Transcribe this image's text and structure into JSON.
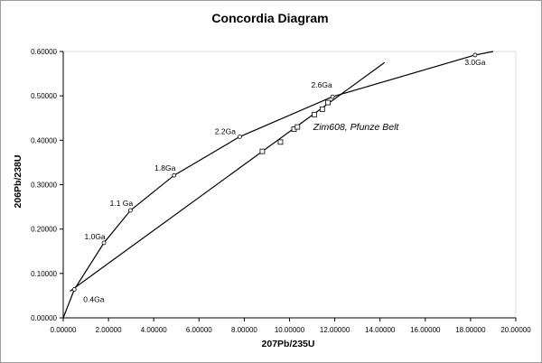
{
  "chart_data": {
    "type": "scatter",
    "title": "Concordia Diagram",
    "xlabel": "207Pb/235U",
    "ylabel": "206Pb/238U",
    "xlim": [
      0,
      20
    ],
    "ylim": [
      0,
      0.6
    ],
    "x_ticks": [
      "0.00000",
      "2.00000",
      "4.00000",
      "6.00000",
      "8.00000",
      "10.00000",
      "12.00000",
      "14.00000",
      "16.00000",
      "18.00000",
      "20.00000"
    ],
    "y_ticks": [
      "0.00000",
      "0.10000",
      "0.20000",
      "0.30000",
      "0.40000",
      "0.50000",
      "0.60000"
    ],
    "concordia_curve": {
      "x": [
        0,
        0.49,
        1.8,
        2.97,
        4.9,
        7.8,
        11.9,
        18.2,
        19.0
      ],
      "y": [
        0,
        0.064,
        0.169,
        0.242,
        0.321,
        0.408,
        0.498,
        0.592,
        0.6
      ]
    },
    "concordia_markers": [
      {
        "label": "0.4Ga",
        "x": 0.49,
        "y": 0.064
      },
      {
        "label": "1.0Ga",
        "x": 1.8,
        "y": 0.169
      },
      {
        "label": "1.1 Ga",
        "x": 2.97,
        "y": 0.242
      },
      {
        "label": "1.8Ga",
        "x": 4.9,
        "y": 0.321
      },
      {
        "label": "2.2Ga",
        "x": 7.8,
        "y": 0.408
      },
      {
        "label": "2.6Ga",
        "x": 11.9,
        "y": 0.498
      },
      {
        "label": "3.0Ga",
        "x": 18.2,
        "y": 0.592
      }
    ],
    "discordia_line": {
      "x": [
        0.3,
        14.2
      ],
      "y": [
        0.06,
        0.575
      ]
    },
    "samples": {
      "name": "Zim608, Pfunze Belt",
      "x": [
        8.8,
        9.6,
        10.2,
        10.35,
        11.1,
        11.45,
        11.7
      ],
      "y": [
        0.375,
        0.396,
        0.425,
        0.43,
        0.458,
        0.47,
        0.485
      ]
    }
  }
}
